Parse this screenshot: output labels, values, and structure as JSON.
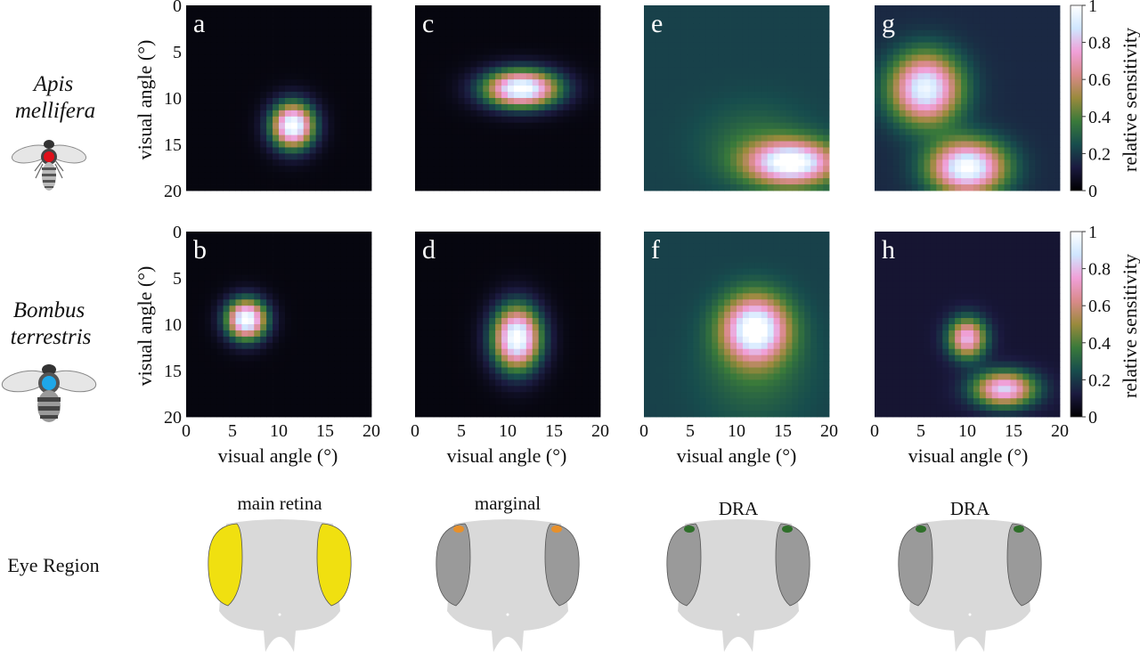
{
  "species": [
    {
      "name_line1": "Apis",
      "name_line2": "mellifera",
      "dot_color": "#e0101a"
    },
    {
      "name_line1": "Bombus",
      "name_line2": "terrestris",
      "dot_color": "#1ea7e8"
    }
  ],
  "eye_region_label": "Eye Region",
  "eye_columns": [
    {
      "label": "main retina",
      "highlight": "yellow",
      "color": "#f0e010"
    },
    {
      "label": "marginal",
      "highlight": "orange",
      "color": "#e8902a"
    },
    {
      "label": "DRA",
      "highlight": "green",
      "color": "#2f6f2a"
    },
    {
      "label": "DRA",
      "highlight": "green",
      "color": "#2f6f2a"
    }
  ],
  "colorbar": {
    "label": "relative sensitivity",
    "ticks": [
      "0",
      "0.2",
      "0.4",
      "0.6",
      "0.8",
      "1"
    ],
    "tick_values": [
      0,
      0.2,
      0.4,
      0.6,
      0.8,
      1
    ],
    "colormap": [
      "#000000",
      "#1b1a3f",
      "#174d4d",
      "#3a7a3a",
      "#9a8a3c",
      "#d98a8a",
      "#f0a0d8",
      "#cfe6ff",
      "#ffffff"
    ]
  },
  "chart_data": {
    "type": "heatmap",
    "title": "",
    "xlabel": "visual angle (°)",
    "ylabel": "visual angle (°)",
    "xlim": [
      0,
      20
    ],
    "ylim": [
      0,
      20
    ],
    "x_ticks": [
      "0",
      "5",
      "10",
      "15",
      "20"
    ],
    "y_ticks": [
      "0",
      "5",
      "10",
      "15",
      "20"
    ],
    "panels": [
      {
        "letter": "a",
        "species": "Apis mellifera",
        "region": "main retina",
        "background": 0.03,
        "blobs": [
          {
            "x": 11.5,
            "y": 13,
            "sx": 1.6,
            "sy": 1.7,
            "amp": 1.0
          }
        ]
      },
      {
        "letter": "c",
        "species": "Apis mellifera",
        "region": "marginal",
        "background": 0.03,
        "blobs": [
          {
            "x": 11.5,
            "y": 9,
            "sx": 2.8,
            "sy": 1.4,
            "amp": 1.0
          }
        ]
      },
      {
        "letter": "e",
        "species": "Apis mellifera",
        "region": "DRA",
        "background": 0.22,
        "blobs": [
          {
            "x": 16,
            "y": 17,
            "sx": 3.2,
            "sy": 1.6,
            "amp": 0.8
          },
          {
            "x": 12,
            "y": 15,
            "sx": 4,
            "sy": 3,
            "amp": 0.12
          }
        ]
      },
      {
        "letter": "g",
        "species": "Apis mellifera",
        "region": "DRA",
        "background": 0.16,
        "blobs": [
          {
            "x": 5.5,
            "y": 9,
            "sx": 2.6,
            "sy": 2.6,
            "amp": 0.8
          },
          {
            "x": 10,
            "y": 17.5,
            "sx": 2.8,
            "sy": 2.0,
            "amp": 0.85
          }
        ]
      },
      {
        "letter": "b",
        "species": "Bombus terrestris",
        "region": "main retina",
        "background": 0.03,
        "blobs": [
          {
            "x": 6.5,
            "y": 9.5,
            "sx": 1.5,
            "sy": 1.5,
            "amp": 1.0
          }
        ]
      },
      {
        "letter": "d",
        "species": "Bombus terrestris",
        "region": "marginal",
        "background": 0.03,
        "blobs": [
          {
            "x": 11,
            "y": 11.5,
            "sx": 1.8,
            "sy": 2.4,
            "amp": 1.0
          }
        ]
      },
      {
        "letter": "f",
        "species": "Bombus terrestris",
        "region": "DRA",
        "background": 0.22,
        "blobs": [
          {
            "x": 12,
            "y": 10.5,
            "sx": 2.4,
            "sy": 2.4,
            "amp": 0.8
          },
          {
            "x": 12,
            "y": 15,
            "sx": 4,
            "sy": 4,
            "amp": 0.12
          }
        ]
      },
      {
        "letter": "h",
        "species": "Bombus terrestris",
        "region": "DRA",
        "background": 0.1,
        "blobs": [
          {
            "x": 10,
            "y": 11.5,
            "sx": 1.4,
            "sy": 1.5,
            "amp": 0.7
          },
          {
            "x": 14,
            "y": 17,
            "sx": 2.3,
            "sy": 1.3,
            "amp": 0.75
          }
        ]
      }
    ]
  }
}
